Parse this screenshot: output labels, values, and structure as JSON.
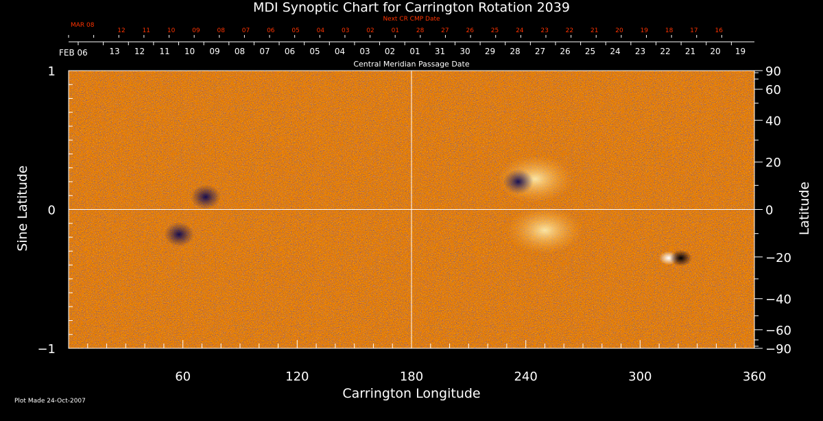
{
  "chart_data": {
    "type": "heatmap",
    "title": "MDI Synoptic Chart for Carrington Rotation 2039",
    "xlabel": "Carrington Longitude",
    "ylabel_left": "Sine Latitude",
    "ylabel_right": "Latitude",
    "xlim": [
      0,
      360
    ],
    "ylim_sine": [
      -1,
      1
    ],
    "x_ticks": [
      60,
      120,
      180,
      240,
      300,
      360
    ],
    "y_ticks_left": [
      {
        "value": 1,
        "label": "1"
      },
      {
        "value": 0,
        "label": "0"
      },
      {
        "value": -1,
        "label": "−1"
      }
    ],
    "y_ticks_right_latitude": [
      90,
      60,
      40,
      20,
      0,
      -20,
      -40,
      -60,
      -90
    ],
    "y_tick_labels_right": [
      "90",
      "60",
      "40",
      "20",
      "0",
      "−20",
      "−40",
      "−60",
      "−90"
    ],
    "reference_lines": [
      {
        "axis": "x",
        "value": 180
      },
      {
        "axis": "y",
        "value": 0
      }
    ],
    "cmp_axis": {
      "label": "Central Meridian Passage Date",
      "start_label": "FEB 06",
      "ticks": [
        "13",
        "12",
        "11",
        "10",
        "09",
        "08",
        "07",
        "06",
        "05",
        "04",
        "03",
        "02",
        "01",
        "31",
        "30",
        "29",
        "28",
        "27",
        "26",
        "25",
        "24",
        "23",
        "22",
        "21",
        "20",
        "19"
      ]
    },
    "next_cr_axis": {
      "label": "Next CR CMP Date",
      "start_label": "MAR 08",
      "ticks": [
        "12",
        "11",
        "10",
        "09",
        "08",
        "07",
        "06",
        "05",
        "04",
        "03",
        "02",
        "01",
        "28",
        "27",
        "26",
        "25",
        "24",
        "23",
        "22",
        "21",
        "20",
        "19",
        "18",
        "17",
        "16"
      ]
    },
    "colormap": [
      "#000055",
      "#1a1a66",
      "#b02000",
      "#e85000",
      "#ffaa30",
      "#fff8c0"
    ],
    "features": [
      {
        "name": "bipolar region",
        "longitude": 320,
        "sin_latitude": -0.35,
        "polarity": "mixed"
      },
      {
        "name": "bright plage",
        "longitude": 245,
        "sin_latitude": 0.22,
        "polarity": "positive"
      },
      {
        "name": "bright plage",
        "longitude": 250,
        "sin_latitude": -0.15,
        "polarity": "positive"
      },
      {
        "name": "dark cluster",
        "longitude": 236,
        "sin_latitude": 0.2,
        "polarity": "negative"
      },
      {
        "name": "dark cluster",
        "longitude": 72,
        "sin_latitude": 0.09,
        "polarity": "negative"
      },
      {
        "name": "dark cluster",
        "longitude": 58,
        "sin_latitude": -0.18,
        "polarity": "negative"
      }
    ]
  },
  "footer": {
    "plot_made": "Plot Made 24-Oct-2007"
  },
  "colors": {
    "background": "#000000",
    "axes": "#ffffff",
    "next_cr_text": "#ff3300"
  }
}
